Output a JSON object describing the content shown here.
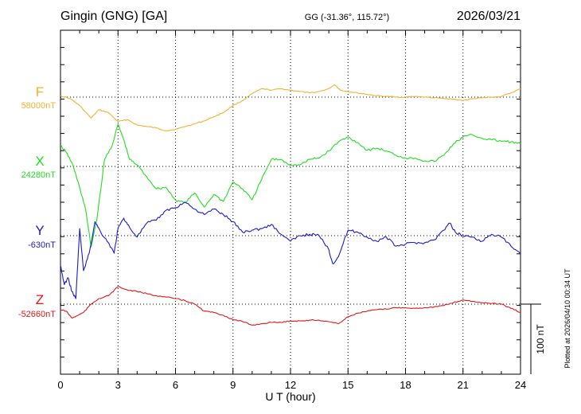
{
  "header": {
    "station": "Gingin (GNG)  [GA]",
    "coords": "GG (-31.36°, 115.72°)",
    "date": "2026/03/21"
  },
  "footer": {
    "plotted": "Plotted at 2026/04/10 00:34 UT"
  },
  "chart_data": {
    "type": "line",
    "title": "Gingin (GNG)  [GA]",
    "xlabel": "U T (hour)",
    "ylabel": "",
    "xlim": [
      0,
      24
    ],
    "x_ticks": [
      0,
      3,
      6,
      9,
      12,
      15,
      18,
      21,
      24
    ],
    "x_tick_labels": [
      "0",
      "3",
      "6",
      "9",
      "12",
      "15",
      "18",
      "21",
      "24"
    ],
    "grid": true,
    "units": "nT",
    "scale_bar": {
      "label": "100 nT",
      "value_nT": 100
    },
    "colors": {
      "F": "#f4b030",
      "X": "#22dd22",
      "Y": "#1a1ad0",
      "Z": "#e01818"
    },
    "series": [
      {
        "name": "F",
        "baseline_label": "58000nT",
        "baseline_nT": 58000,
        "x": [
          0,
          0.5,
          1,
          1.6,
          2,
          2.5,
          3,
          3.5,
          4,
          4.5,
          5,
          5.5,
          6,
          6.5,
          7,
          7.5,
          8,
          8.5,
          9,
          9.5,
          10,
          10.5,
          11,
          11.5,
          12,
          12.5,
          13,
          13.5,
          14,
          14.3,
          14.6,
          15,
          15.5,
          16,
          16.5,
          17,
          17.5,
          18,
          18.5,
          19,
          19.5,
          20,
          20.5,
          21,
          21.5,
          22,
          22.5,
          23,
          23.5,
          24
        ],
        "values": [
          58002,
          57998,
          57988,
          57970,
          57982,
          57978,
          57965,
          57968,
          57960,
          57958,
          57956,
          57952,
          57954,
          57958,
          57962,
          57966,
          57972,
          57978,
          57988,
          57995,
          58005,
          58012,
          58010,
          58012,
          58010,
          58008,
          58006,
          58008,
          58012,
          58018,
          58010,
          58008,
          58006,
          58004,
          58002,
          58001,
          58000,
          58000,
          58001,
          58000,
          57999,
          57998,
          57997,
          57995,
          57998,
          57999,
          58000,
          58001,
          58006,
          58012
        ]
      },
      {
        "name": "X",
        "baseline_label": "24280nT",
        "baseline_nT": 24280,
        "x": [
          0,
          0.3,
          0.6,
          1,
          1.3,
          1.6,
          1.9,
          2.3,
          2.7,
          3,
          3.3,
          3.6,
          4,
          4.5,
          5,
          5.5,
          6,
          6.5,
          7,
          7.5,
          8,
          8.5,
          9,
          9.5,
          10,
          10.5,
          11,
          11.5,
          12,
          12.5,
          13,
          13.5,
          14,
          14.5,
          15,
          15.5,
          16,
          16.5,
          17,
          17.5,
          18,
          18.5,
          19,
          19.5,
          20,
          20.5,
          21,
          21.5,
          22,
          22.5,
          23,
          23.5,
          24
        ],
        "values": [
          24310,
          24300,
          24285,
          24250,
          24220,
          24165,
          24205,
          24290,
          24310,
          24340,
          24318,
          24290,
          24282,
          24265,
          24248,
          24250,
          24232,
          24228,
          24242,
          24222,
          24240,
          24230,
          24258,
          24248,
          24232,
          24262,
          24290,
          24290,
          24282,
          24282,
          24290,
          24292,
          24302,
          24315,
          24322,
          24314,
          24303,
          24306,
          24302,
          24296,
          24292,
          24292,
          24288,
          24287,
          24296,
          24312,
          24322,
          24325,
          24320,
          24318,
          24316,
          24315,
          24312
        ]
      },
      {
        "name": "Y",
        "baseline_label": "-630nT",
        "baseline_nT": -630,
        "x": [
          0,
          0.2,
          0.4,
          0.6,
          0.8,
          1,
          1.2,
          1.5,
          1.8,
          2.1,
          2.5,
          2.8,
          3,
          3.3,
          3.6,
          4,
          4.5,
          5,
          5.5,
          6,
          6.5,
          7,
          7.5,
          8,
          8.5,
          9,
          9.5,
          10,
          10.5,
          11,
          11.5,
          12,
          12.5,
          13,
          13.5,
          14,
          14.2,
          14.5,
          15,
          15.5,
          16,
          16.5,
          17,
          17.5,
          18,
          18.5,
          19,
          19.5,
          20,
          20.3,
          20.6,
          21,
          21.5,
          22,
          22.5,
          23,
          23.5,
          24
        ],
        "values": [
          -672,
          -700,
          -690,
          -710,
          -720,
          -620,
          -680,
          -655,
          -610,
          -625,
          -640,
          -655,
          -620,
          -605,
          -618,
          -632,
          -612,
          -608,
          -594,
          -590,
          -582,
          -592,
          -600,
          -592,
          -600,
          -610,
          -625,
          -622,
          -620,
          -614,
          -628,
          -638,
          -630,
          -628,
          -630,
          -650,
          -670,
          -660,
          -622,
          -625,
          -632,
          -638,
          -632,
          -645,
          -642,
          -640,
          -640,
          -636,
          -622,
          -612,
          -625,
          -630,
          -632,
          -638,
          -628,
          -632,
          -645,
          -656
        ]
      },
      {
        "name": "Z",
        "baseline_label": "-52660nT",
        "baseline_nT": -52660,
        "x": [
          0,
          0.3,
          0.6,
          0.9,
          1.2,
          1.6,
          2,
          2.5,
          3,
          3.5,
          4,
          4.5,
          5,
          5.5,
          6,
          6.5,
          7,
          7.5,
          8,
          8.5,
          9,
          9.5,
          10,
          10.5,
          11,
          11.5,
          12,
          12.5,
          13,
          13.5,
          14,
          14.5,
          15,
          15.5,
          16,
          16.5,
          17,
          17.5,
          18,
          18.5,
          19,
          19.5,
          20,
          20.5,
          21,
          21.5,
          22,
          22.5,
          23,
          23.5,
          24
        ],
        "values": [
          -52668,
          -52670,
          -52680,
          -52676,
          -52672,
          -52660,
          -52652,
          -52648,
          -52635,
          -52640,
          -52642,
          -52645,
          -52648,
          -52650,
          -52652,
          -52655,
          -52660,
          -52670,
          -52672,
          -52676,
          -52682,
          -52685,
          -52690,
          -52688,
          -52686,
          -52686,
          -52684,
          -52684,
          -52683,
          -52683,
          -52685,
          -52688,
          -52678,
          -52673,
          -52670,
          -52668,
          -52667,
          -52665,
          -52665,
          -52666,
          -52665,
          -52664,
          -52662,
          -52658,
          -52654,
          -52656,
          -52658,
          -52659,
          -52660,
          -52666,
          -52672
        ]
      }
    ]
  }
}
